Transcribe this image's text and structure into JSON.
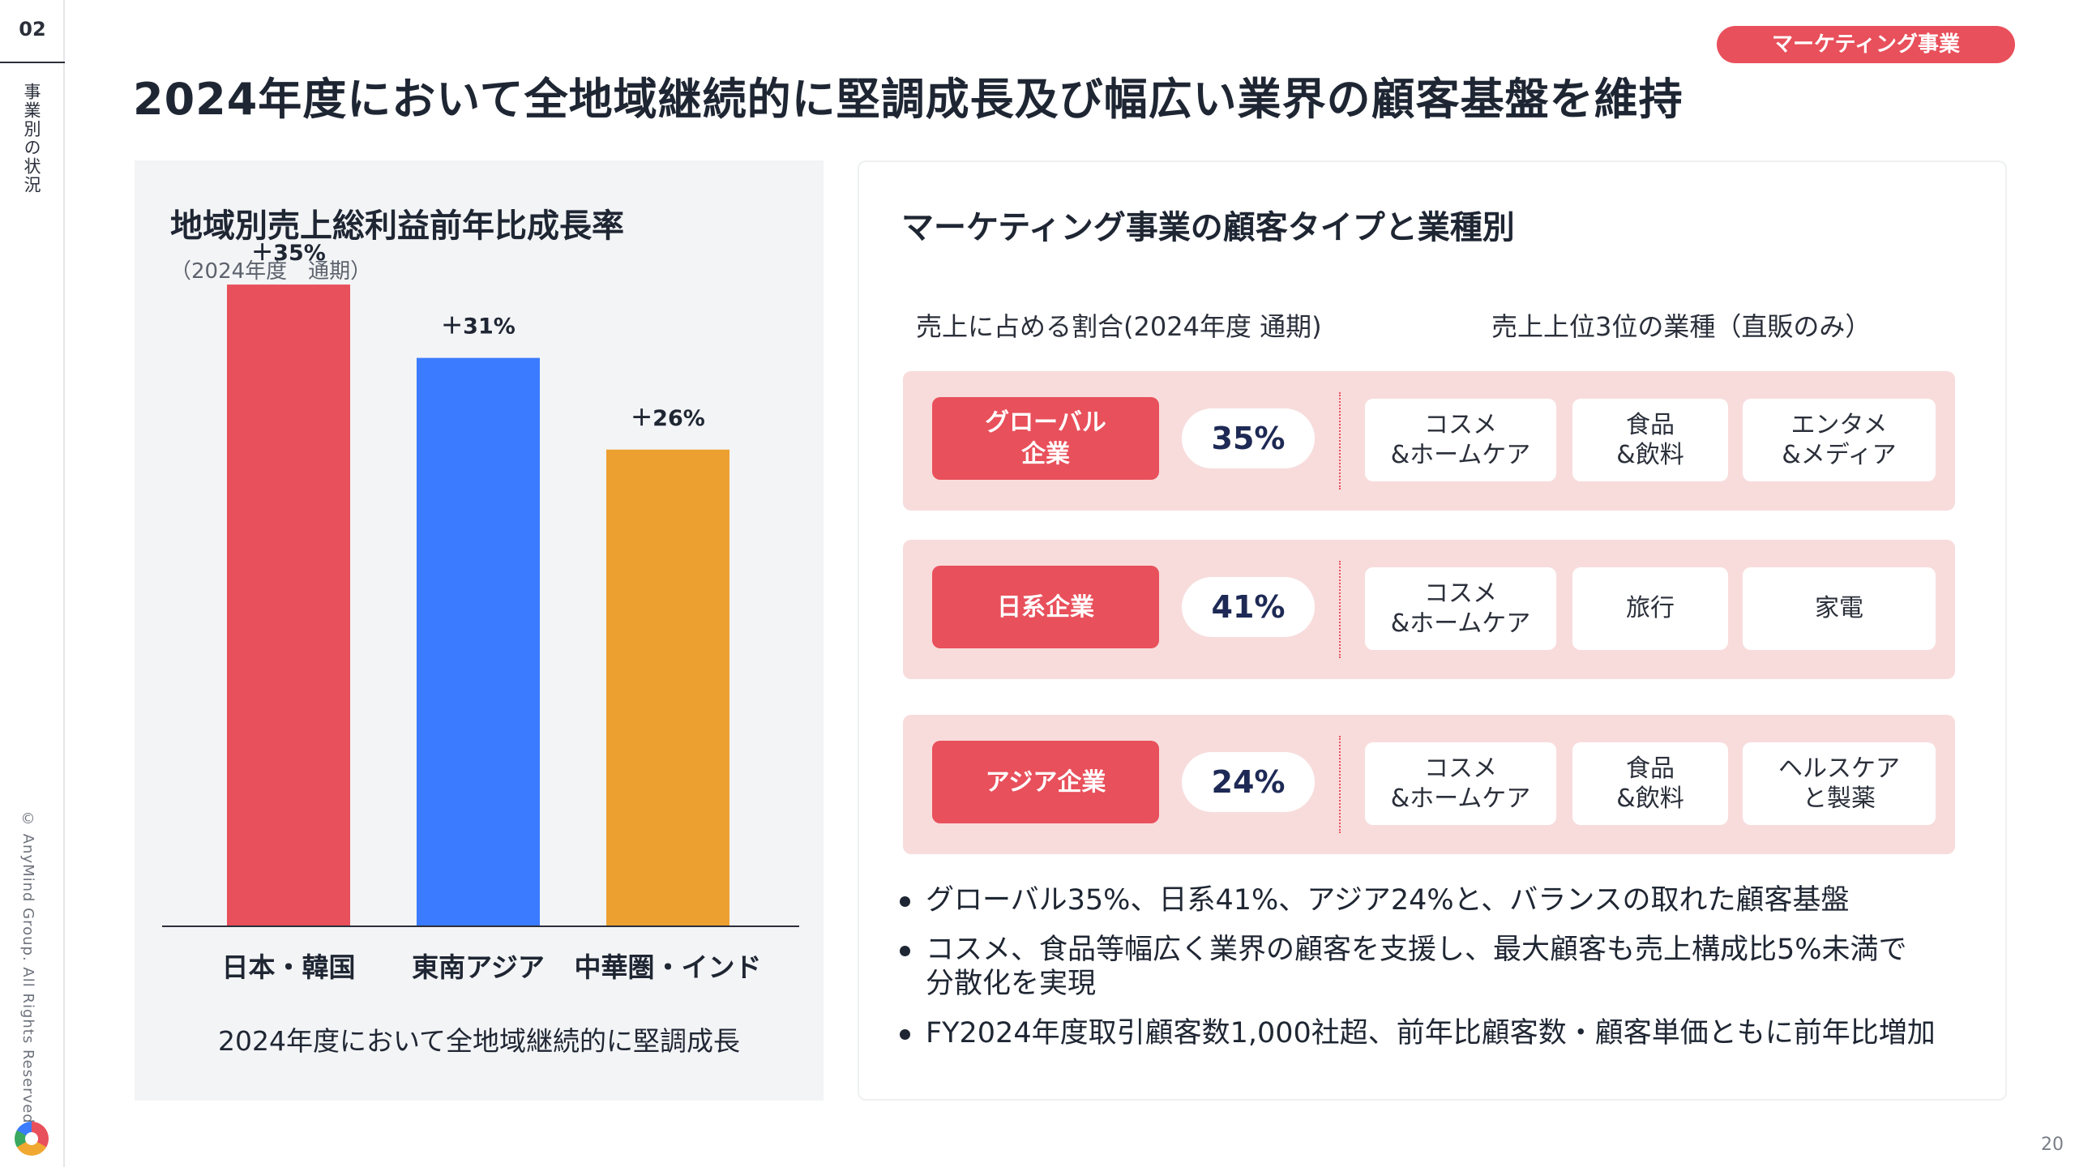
{
  "page_number": "02",
  "section": "事業別の状況",
  "copyright": "© AnyMind Group. All Rights Reserved.",
  "slide_number": "20",
  "tag": "マーケティング事業",
  "headline": "2024年度において全地域継続的に堅調成長及び幅広い業界の顧客基盤を維持",
  "left_panel": {
    "title": "地域別売上総利益前年比成長率",
    "subtitle": "（2024年度　通期）",
    "caption": "2024年度において全地域継続的に堅調成長"
  },
  "chart_data": {
    "type": "bar",
    "title": "地域別売上総利益前年比成長率",
    "subtitle": "（2024年度　通期）",
    "categories": [
      "日本・韓国",
      "東南アジア",
      "中華圏・インド"
    ],
    "values": [
      35,
      31,
      26
    ],
    "data_labels": [
      "＋35%",
      "＋31%",
      "＋26%"
    ],
    "colors": [
      "#e8505b",
      "#3a7bff",
      "#eca030"
    ],
    "ylim": [
      0,
      40
    ],
    "grid": false,
    "xlabel": "",
    "ylabel": ""
  },
  "right_panel": {
    "title": "マーケティング事業の顧客タイプと業種別",
    "col_share": "売上に占める割合(2024年度 通期)",
    "col_industry": "売上上位3位の業種（直販のみ）",
    "rows": [
      {
        "company": "グローバル\n企業",
        "share": "35%",
        "industries": [
          "コスメ\n&ホームケア",
          "食品\n&飲料",
          "エンタメ\n&メディア"
        ]
      },
      {
        "company": "日系企業",
        "share": "41%",
        "industries": [
          "コスメ\n&ホームケア",
          "旅行",
          "家電"
        ]
      },
      {
        "company": "アジア企業",
        "share": "24%",
        "industries": [
          "コスメ\n&ホームケア",
          "食品\n&飲料",
          "ヘルスケア\nと製薬"
        ]
      }
    ],
    "bullets": [
      "グローバル35%、日系41%、アジア24%と、バランスの取れた顧客基盤",
      "コスメ、食品等幅広く業界の顧客を支援し、最大顧客も売上構成比5%未満で\n分散化を実現",
      "FY2024年度取引顧客数1,000社超、前年比顧客数・顧客単価ともに前年比増加"
    ]
  },
  "colors": {
    "accent": "#e8505b",
    "row_bg": "#f8dcdc",
    "panel_bg": "#f3f4f6"
  }
}
